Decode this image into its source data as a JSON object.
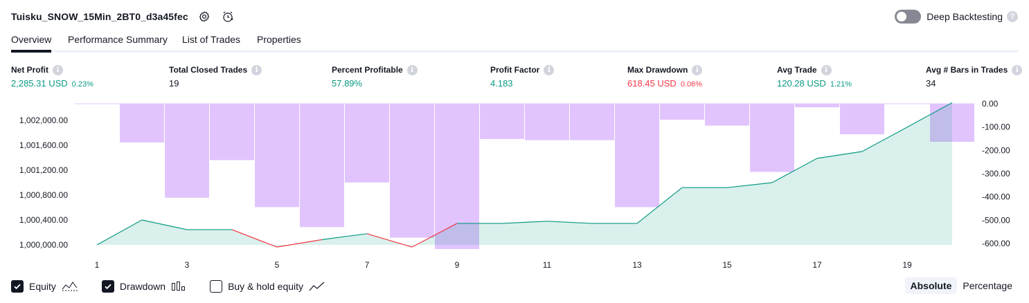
{
  "header": {
    "strategy_name": "Tuisku_SNOW_15Min_2BT0_d3a45fec",
    "settings_icon": "gear-icon",
    "alert_icon": "alarm-clock-icon",
    "deep_backtesting_label": "Deep Backtesting",
    "deep_backtesting_on": false,
    "help_mark": "?"
  },
  "tabs": [
    {
      "label": "Overview",
      "active": true
    },
    {
      "label": "Performance Summary",
      "active": false
    },
    {
      "label": "List of Trades",
      "active": false
    },
    {
      "label": "Properties",
      "active": false
    }
  ],
  "metrics": [
    {
      "label": "Net Profit",
      "value": "2,285.31 USD",
      "pct": "0.23%",
      "color": "green"
    },
    {
      "label": "Total Closed Trades",
      "value": "19",
      "pct": "",
      "color": "dark"
    },
    {
      "label": "Percent Profitable",
      "value": "57.89%",
      "pct": "",
      "color": "green"
    },
    {
      "label": "Profit Factor",
      "value": "4.183",
      "pct": "",
      "color": "green"
    },
    {
      "label": "Max Drawdown",
      "value": "618.45 USD",
      "pct": "0.06%",
      "color": "red"
    },
    {
      "label": "Avg Trade",
      "value": "120.28 USD",
      "pct": "1.21%",
      "color": "green"
    },
    {
      "label": "Avg # Bars in Trades",
      "value": "34",
      "pct": "",
      "color": "dark"
    }
  ],
  "info_mark": "i",
  "colors": {
    "equity_line": "#089981",
    "equity_fill": "#089981",
    "equity_negative": "#f23645",
    "drawdown_bar": "#e1c4fd",
    "text": "#131722"
  },
  "chart_data": {
    "type": "bar",
    "x": [
      1,
      2,
      3,
      4,
      5,
      6,
      7,
      8,
      9,
      10,
      11,
      12,
      13,
      14,
      15,
      16,
      17,
      18,
      19,
      20
    ],
    "x_tick_labels": [
      "1",
      "3",
      "5",
      "7",
      "9",
      "11",
      "13",
      "15",
      "17",
      "19"
    ],
    "x_tick_values": [
      1,
      3,
      5,
      7,
      9,
      11,
      13,
      15,
      17,
      19
    ],
    "y_left_tick_labels": [
      "1,000,000.00",
      "1,000,400.00",
      "1,000,800.00",
      "1,001,200.00",
      "1,001,600.00",
      "1,002,000.00"
    ],
    "y_left_tick_values": [
      1000000,
      1000400,
      1000800,
      1001200,
      1001600,
      1002000
    ],
    "y_left_range": [
      999990,
      1002260
    ],
    "y_right_tick_labels": [
      "0.00",
      "-100.00",
      "-200.00",
      "-300.00",
      "-400.00",
      "-500.00",
      "-600.00"
    ],
    "y_right_tick_values": [
      0,
      -100,
      -200,
      -300,
      -400,
      -500,
      -600
    ],
    "y_right_range": [
      -618.45,
      0
    ],
    "series": [
      {
        "name": "Equity",
        "type": "area",
        "axis": "left",
        "values": [
          1000000,
          1000400,
          1000245,
          1000245,
          999965,
          1000085,
          1000180,
          999965,
          1000345,
          1000345,
          1000380,
          1000345,
          1000345,
          1000920,
          1000920,
          1001000,
          1001390,
          1001500,
          1001890,
          1002285
        ]
      },
      {
        "name": "Drawdown",
        "type": "bar",
        "axis": "right",
        "values": [
          0,
          -165,
          -400,
          -240,
          -440,
          -525,
          -335,
          -570,
          -618.45,
          -150,
          -155,
          -155,
          -440,
          -68,
          -93,
          -290,
          -15,
          -130,
          0,
          -162
        ]
      }
    ],
    "grid": false,
    "legend_position": "bottom-left"
  },
  "legend": [
    {
      "label": "Equity",
      "checked": true,
      "icon": "equity-line-icon"
    },
    {
      "label": "Drawdown",
      "checked": true,
      "icon": "drawdown-bars-icon"
    },
    {
      "label": "Buy & hold equity",
      "checked": false,
      "icon": "buy-hold-line-icon"
    }
  ],
  "modes": [
    {
      "label": "Absolute",
      "active": true
    },
    {
      "label": "Percentage",
      "active": false
    }
  ]
}
